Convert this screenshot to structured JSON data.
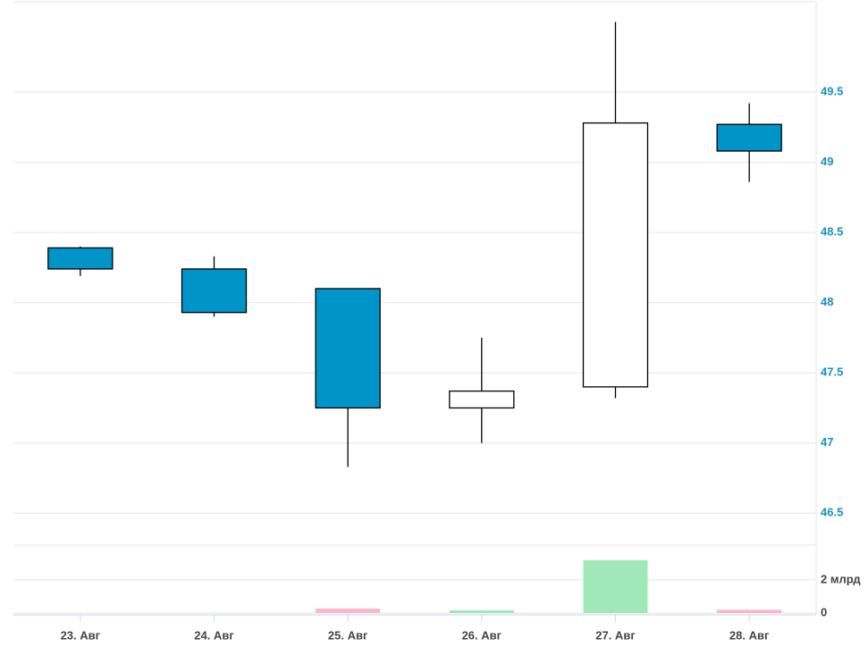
{
  "chart_data": {
    "type": "candlestick",
    "categories": [
      "23. Авг",
      "24. Авг",
      "25. Авг",
      "26. Авг",
      "27. Авг",
      "28. Авг"
    ],
    "open": [
      48.39,
      48.24,
      48.1,
      47.25,
      47.4,
      49.27
    ],
    "high": [
      48.4,
      48.33,
      48.1,
      47.75,
      50.0,
      49.42
    ],
    "low": [
      48.19,
      47.9,
      46.83,
      47.0,
      47.32,
      48.86
    ],
    "close": [
      48.24,
      47.93,
      47.25,
      47.37,
      49.28,
      49.08
    ],
    "up_color": "#ffffff",
    "down_color": "#0094c8",
    "ylim": [
      46.4,
      50.0
    ],
    "yticks": [
      46.5,
      47,
      47.5,
      48,
      48.5,
      49,
      49.5
    ],
    "volume": {
      "values": [
        0,
        0,
        270000000,
        160000000,
        3190000000,
        200000000
      ],
      "up_color": "#a0e8b8",
      "down_color": "#f8b8cc",
      "ylim": [
        0,
        4100000000
      ],
      "yticks": [
        0,
        {
          "value": 2000000000,
          "label": "2 млрд"
        }
      ]
    },
    "grid": true
  }
}
